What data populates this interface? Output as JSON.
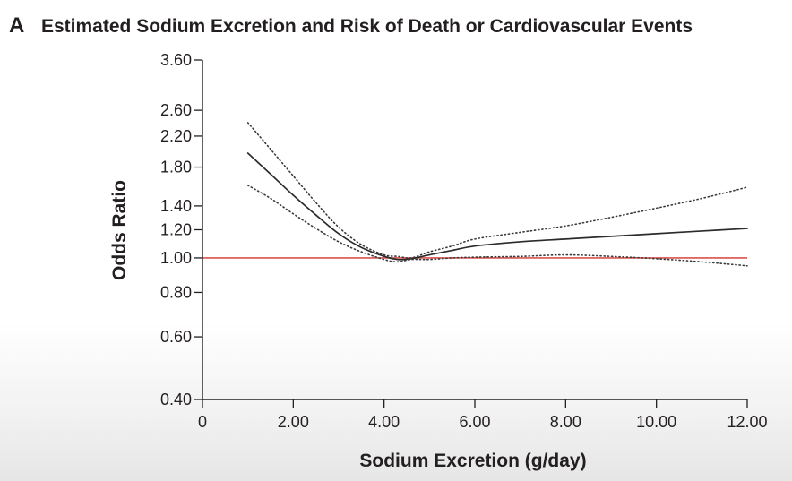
{
  "panel_letter": "A",
  "chart_data": {
    "type": "line",
    "title": "Estimated Sodium Excretion and Risk of Death or Cardiovascular Events",
    "xlabel": "Sodium Excretion (g/day)",
    "ylabel": "Odds Ratio",
    "xlim": [
      0,
      12
    ],
    "ylim": [
      0.4,
      3.6
    ],
    "y_scale": "log",
    "grid": false,
    "x_ticks": [
      0,
      2,
      4,
      6,
      8,
      10,
      12
    ],
    "x_tick_labels": [
      "0",
      "2.00",
      "4.00",
      "6.00",
      "8.00",
      "10.00",
      "12.00"
    ],
    "y_ticks": [
      0.4,
      0.6,
      0.8,
      1.0,
      1.2,
      1.4,
      1.8,
      2.2,
      2.6,
      3.6
    ],
    "y_tick_labels": [
      "0.40",
      "0.60",
      "0.80",
      "1.00",
      "1.20",
      "1.40",
      "1.80",
      "2.20",
      "2.60",
      "3.60"
    ],
    "reference_line": {
      "y": 1.0,
      "color": "#d9534f"
    },
    "series": [
      {
        "role": "estimate",
        "style": "solid",
        "color": "#2b2b2b",
        "x": [
          1.0,
          1.5,
          2.0,
          2.5,
          3.0,
          3.5,
          4.0,
          4.3,
          4.6,
          5.0,
          5.5,
          6.0,
          7.0,
          8.0,
          9.0,
          10.0,
          11.0,
          12.0
        ],
        "y": [
          1.97,
          1.72,
          1.5,
          1.32,
          1.17,
          1.07,
          1.01,
          0.99,
          0.995,
          1.02,
          1.05,
          1.08,
          1.11,
          1.13,
          1.15,
          1.17,
          1.19,
          1.21
        ]
      },
      {
        "role": "upper_ci",
        "style": "dotted",
        "color": "#3a3a3a",
        "x": [
          1.0,
          1.5,
          2.0,
          2.5,
          3.0,
          3.5,
          4.0,
          4.3,
          4.6,
          5.0,
          5.5,
          6.0,
          7.0,
          8.0,
          9.0,
          10.0,
          11.0,
          12.0
        ],
        "y": [
          2.4,
          2.02,
          1.7,
          1.43,
          1.22,
          1.09,
          1.02,
          1.01,
          1.0,
          1.04,
          1.08,
          1.13,
          1.18,
          1.23,
          1.3,
          1.38,
          1.47,
          1.58
        ]
      },
      {
        "role": "lower_ci",
        "style": "dotted",
        "color": "#3a3a3a",
        "x": [
          1.0,
          1.5,
          2.0,
          2.5,
          3.0,
          3.5,
          4.0,
          4.3,
          4.6,
          5.0,
          5.5,
          6.0,
          7.0,
          8.0,
          9.0,
          10.0,
          11.0,
          12.0
        ],
        "y": [
          1.6,
          1.47,
          1.33,
          1.21,
          1.11,
          1.04,
          0.99,
          0.975,
          0.99,
          0.99,
          1.0,
          1.005,
          1.01,
          1.02,
          1.01,
          0.995,
          0.975,
          0.95
        ]
      }
    ]
  }
}
